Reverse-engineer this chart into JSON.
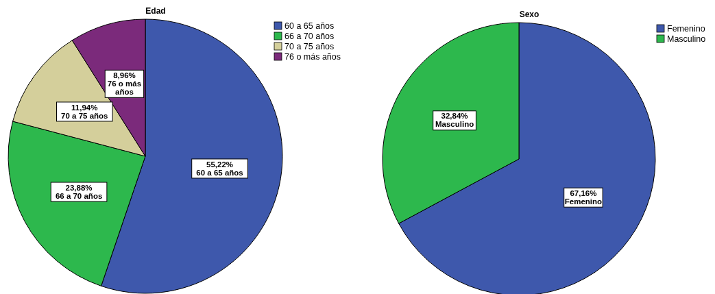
{
  "chart_data": [
    {
      "type": "pie",
      "title": "Edad",
      "categories": [
        "60 a 65 años",
        "66 a 70 años",
        "70 a 75 años",
        "76 o más años"
      ],
      "values": [
        55.22,
        23.88,
        11.94,
        8.96
      ],
      "colors": [
        "#3e58ac",
        "#2db84d",
        "#d4cf9b",
        "#7b2a7b"
      ],
      "value_labels": [
        "55,22%",
        "23,88%",
        "11,94%",
        "8,96%"
      ],
      "legend": "top right"
    },
    {
      "type": "pie",
      "title": "Sexo",
      "categories": [
        "Femenino",
        "Masculino"
      ],
      "values": [
        67.16,
        32.84
      ],
      "colors": [
        "#3e58ac",
        "#2db84d"
      ],
      "value_labels": [
        "67,16%",
        "32,84%"
      ],
      "legend": "top right"
    }
  ]
}
